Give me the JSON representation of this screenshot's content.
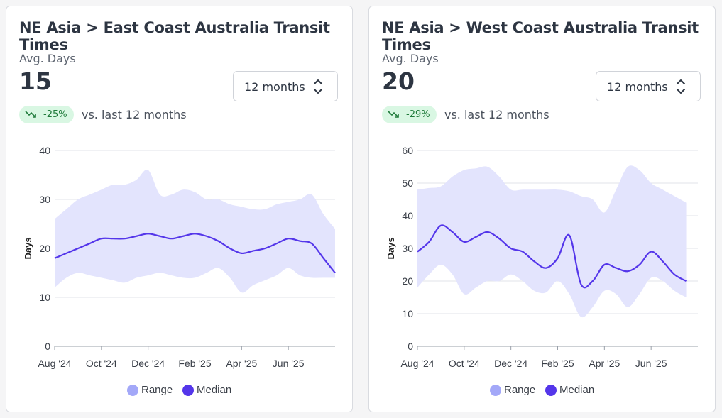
{
  "colors": {
    "range": "#a3a8f8",
    "range_fill": "#e3e4fd",
    "median": "#5436ea",
    "badge_bg": "#d9f7e3",
    "badge_text": "#1f7a3a"
  },
  "cards": [
    {
      "title": "NE Asia > East Coast Australia Transit Times",
      "metric_label": "Avg. Days",
      "metric_value": "15",
      "period_select": "12 months",
      "change_pct": "-25%",
      "change_icon": "trending-down-icon",
      "vs_text": "vs. last 12 months",
      "legend": {
        "range": "Range",
        "median": "Median"
      },
      "chart_data": {
        "type": "area",
        "ylabel": "Days",
        "ylim": [
          0,
          40
        ],
        "yticks": [
          0,
          10,
          20,
          30,
          40
        ],
        "x": [
          0,
          0.5,
          1,
          1.5,
          2,
          2.5,
          3,
          3.5,
          4,
          4.5,
          5,
          5.5,
          6,
          6.5,
          7,
          7.5,
          8,
          8.5,
          9,
          9.5,
          10,
          10.5,
          11,
          11.5,
          12
        ],
        "xticks": [
          {
            "x": 0,
            "label": "Aug '24"
          },
          {
            "x": 2,
            "label": "Oct '24"
          },
          {
            "x": 4,
            "label": "Dec '24"
          },
          {
            "x": 6,
            "label": "Feb '25"
          },
          {
            "x": 8,
            "label": "Apr '25"
          },
          {
            "x": 10,
            "label": "Jun '25"
          }
        ],
        "series": [
          {
            "name": "Range",
            "kind": "band",
            "low": [
              12,
              14,
              15,
              14.5,
              14,
              13.5,
              13,
              14,
              14.5,
              15,
              14.5,
              14,
              14,
              15,
              16,
              14,
              11,
              12.5,
              13.5,
              14.5,
              16,
              14.5,
              14,
              14,
              14
            ],
            "high": [
              26,
              28,
              30,
              31,
              32,
              33,
              33,
              34,
              36,
              31,
              31,
              32,
              31.5,
              30,
              30,
              29,
              28.5,
              28,
              28,
              29,
              29.5,
              30,
              31,
              27,
              24
            ]
          },
          {
            "name": "Median",
            "kind": "line",
            "values": [
              18,
              19,
              20,
              21,
              22,
              22,
              22,
              22.5,
              23,
              22.5,
              22,
              22.5,
              23,
              22.5,
              21.5,
              20,
              19,
              19.5,
              20,
              21,
              22,
              21.5,
              21,
              18,
              15
            ]
          }
        ]
      }
    },
    {
      "title": "NE Asia > West Coast Australia Transit Times",
      "metric_label": "Avg. Days",
      "metric_value": "20",
      "period_select": "12 months",
      "change_pct": "-29%",
      "change_icon": "trending-down-icon",
      "vs_text": "vs. last 12 months",
      "legend": {
        "range": "Range",
        "median": "Median"
      },
      "chart_data": {
        "type": "area",
        "ylabel": "Days",
        "ylim": [
          0,
          60
        ],
        "yticks": [
          0,
          10,
          20,
          30,
          40,
          50,
          60
        ],
        "x": [
          0,
          0.5,
          1,
          1.5,
          2,
          2.5,
          3,
          3.5,
          4,
          4.5,
          5,
          5.5,
          6,
          6.5,
          7,
          7.5,
          8,
          8.5,
          9,
          9.5,
          10,
          10.5,
          11,
          11.5
        ],
        "xticks": [
          {
            "x": 0,
            "label": "Aug '24"
          },
          {
            "x": 2,
            "label": "Oct '24"
          },
          {
            "x": 4,
            "label": "Dec '24"
          },
          {
            "x": 6,
            "label": "Feb '25"
          },
          {
            "x": 8,
            "label": "Apr '25"
          },
          {
            "x": 10,
            "label": "Jun '25"
          }
        ],
        "series": [
          {
            "name": "Range",
            "kind": "band",
            "low": [
              18,
              22,
              25,
              22,
              16,
              18,
              20,
              20,
              22,
              20,
              17,
              16.5,
              20,
              16,
              9,
              12,
              17,
              16,
              12,
              16,
              21,
              20,
              17,
              15
            ],
            "high": [
              48,
              48.5,
              49,
              52,
              54,
              54.5,
              55,
              52,
              48,
              48,
              48,
              48,
              48,
              47.5,
              46,
              45,
              41,
              48,
              55,
              54,
              50,
              48,
              46,
              44
            ]
          },
          {
            "name": "Median",
            "kind": "line",
            "values": [
              29,
              32,
              37,
              35,
              32,
              33.5,
              35,
              33,
              30,
              29,
              26,
              24,
              27,
              34,
              19,
              20,
              25,
              24,
              23,
              25,
              29,
              26,
              22,
              20
            ]
          }
        ]
      }
    }
  ]
}
